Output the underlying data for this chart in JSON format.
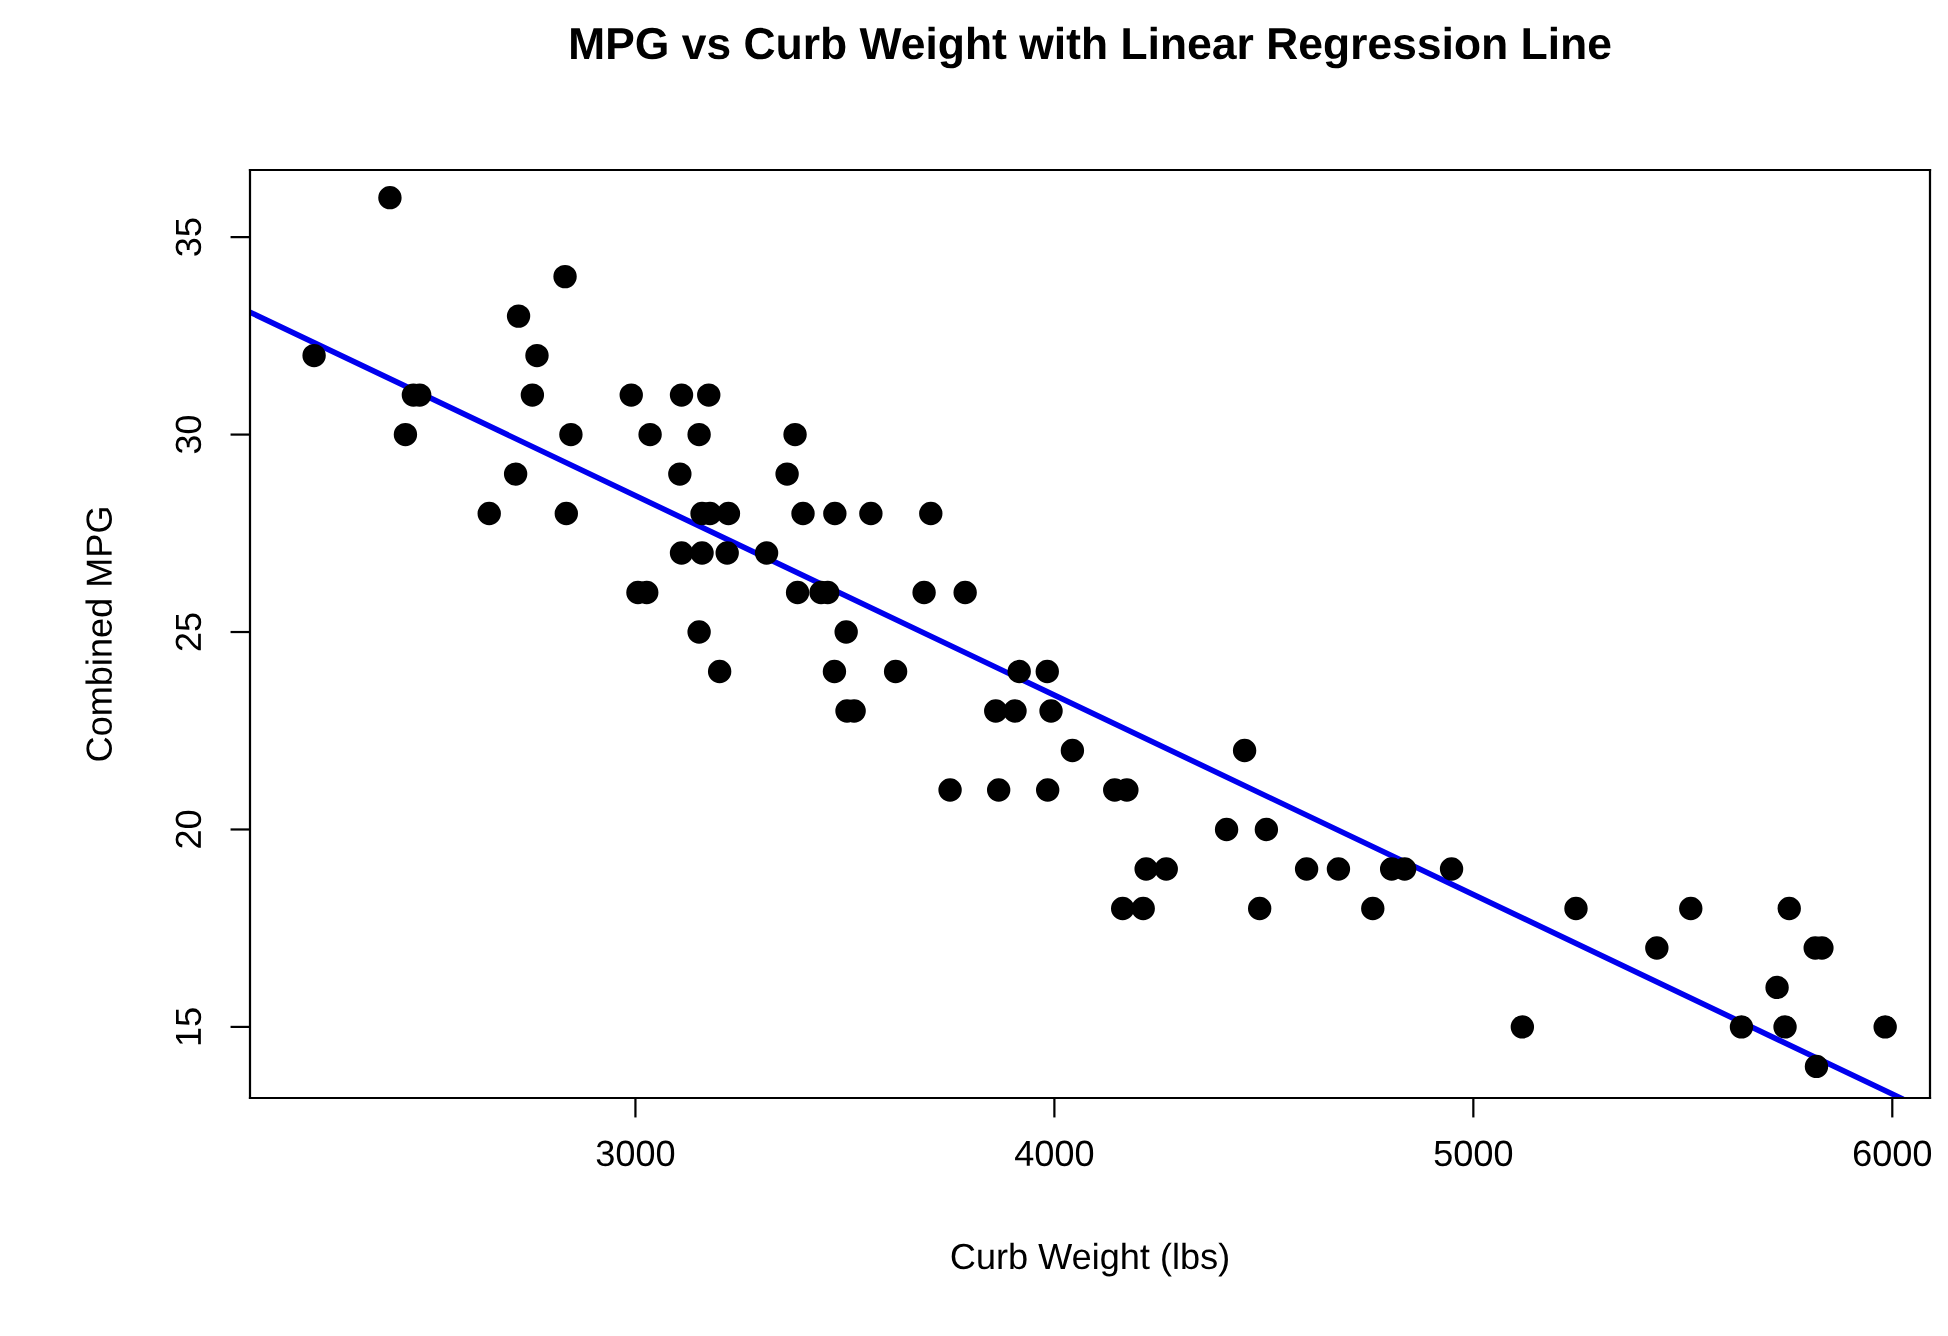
{
  "chart_data": {
    "type": "scatter",
    "title": "MPG vs Curb Weight with Linear Regression Line",
    "xlabel": "Curb Weight (lbs)",
    "ylabel": "Combined MPG",
    "xlim": [
      2080,
      6090
    ],
    "ylim": [
      13.2,
      36.7
    ],
    "xticks": [
      3000,
      4000,
      5000,
      6000
    ],
    "yticks": [
      15,
      20,
      25,
      30,
      35
    ],
    "grid": false,
    "series": [
      {
        "marker": "circle",
        "color": "#000000",
        "x": [
          2414,
          2233,
          2470,
          2485,
          2451,
          2832,
          2721,
          2765,
          2754,
          2846,
          2714,
          2651,
          2835,
          2990,
          3110,
          3175,
          3035,
          3152,
          3106,
          3159,
          3178,
          3222,
          3110,
          3159,
          3219,
          3313,
          3381,
          3362,
          3400,
          3476,
          3006,
          3027,
          3387,
          3443,
          3459,
          3152,
          3201,
          3475,
          3503,
          3505,
          3562,
          3705,
          3689,
          3787,
          3621,
          3522,
          3916,
          3983,
          3860,
          3906,
          3992,
          4043,
          4454,
          3751,
          3867,
          3984,
          4144,
          4173,
          4411,
          4506,
          4219,
          4267,
          4602,
          4678,
          4805,
          4836,
          4948,
          4163,
          4212,
          4490,
          4760,
          5245,
          5519,
          5754,
          5438,
          5816,
          5832,
          5725,
          5117,
          5640,
          5744,
          5983,
          5819
        ],
        "values": [
          36,
          32,
          31,
          31,
          30,
          34,
          33,
          32,
          31,
          30,
          29,
          28,
          28,
          31,
          31,
          31,
          30,
          30,
          29,
          28,
          28,
          28,
          27,
          27,
          27,
          27,
          30,
          29,
          28,
          28,
          26,
          26,
          26,
          26,
          26,
          25,
          24,
          24,
          25,
          23,
          28,
          28,
          26,
          26,
          24,
          23,
          24,
          24,
          23,
          23,
          23,
          22,
          22,
          21,
          21,
          21,
          21,
          21,
          20,
          20,
          19,
          19,
          19,
          19,
          19,
          19,
          19,
          18,
          18,
          18,
          18,
          18,
          18,
          18,
          17,
          17,
          17,
          16,
          15,
          15,
          15,
          15,
          14
        ]
      },
      {
        "type": "line",
        "marker": "none",
        "color": "#0000ee",
        "x": [
          2080,
          6020
        ],
        "values": [
          33.1,
          13.2
        ]
      }
    ]
  }
}
